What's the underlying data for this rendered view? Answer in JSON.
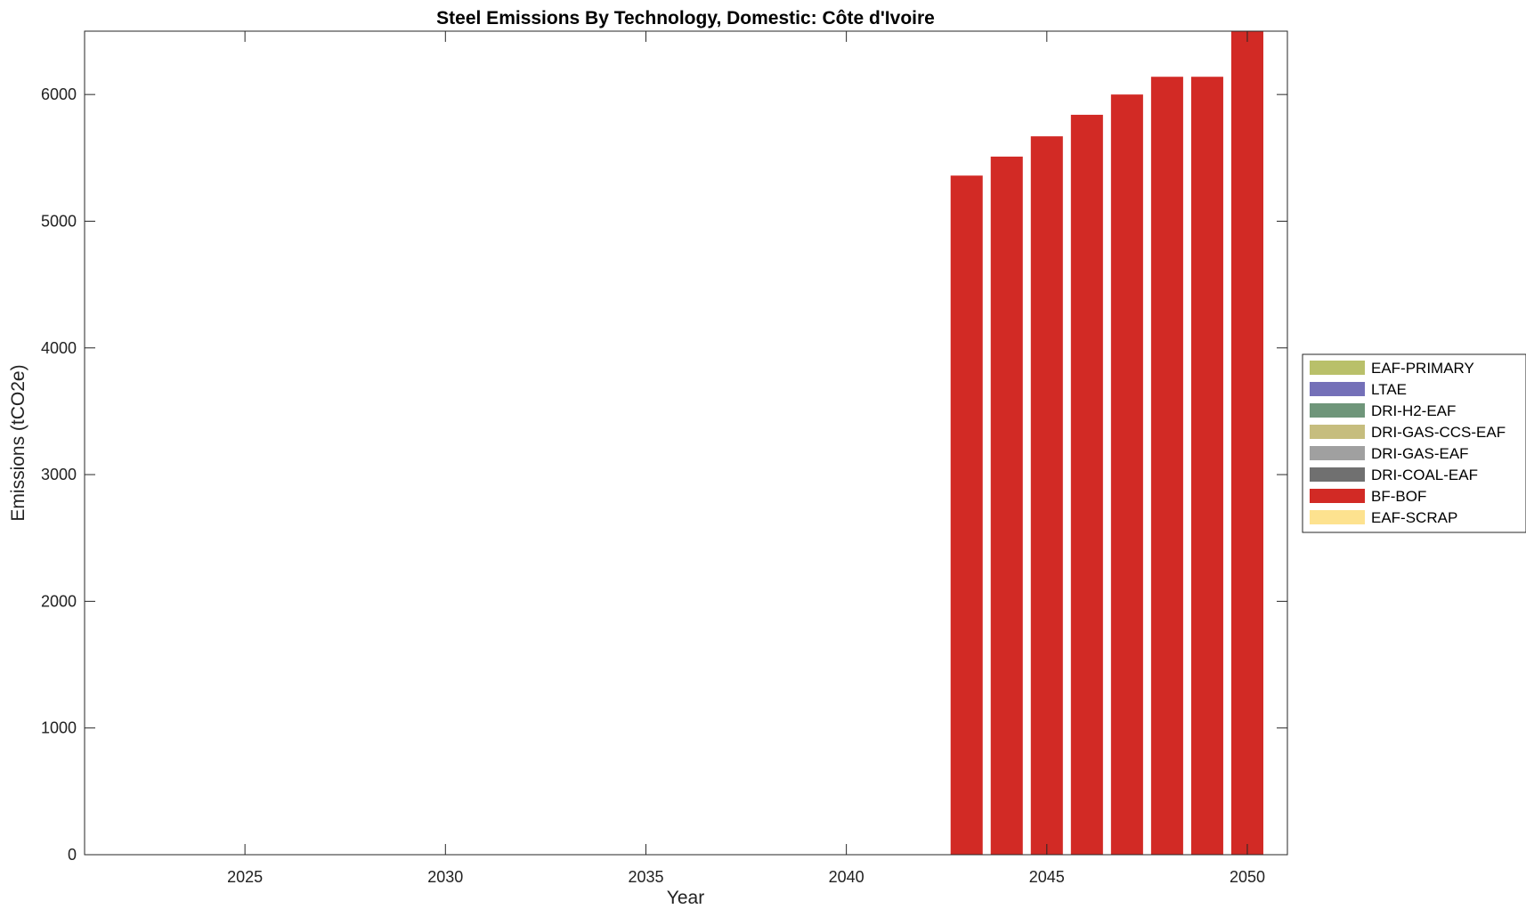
{
  "chart_data": {
    "type": "bar",
    "stacked": true,
    "title": "Steel Emissions By Technology, Domestic: Côte d'Ivoire",
    "xlabel": "Year",
    "ylabel": "Emissions (tCO2e)",
    "xlim": [
      2021,
      2051
    ],
    "ylim": [
      0,
      6500
    ],
    "xticks": [
      2025,
      2030,
      2035,
      2040,
      2045,
      2050
    ],
    "yticks": [
      0,
      1000,
      2000,
      3000,
      4000,
      5000,
      6000
    ],
    "grid": false,
    "legend_position": "outside-right",
    "x": [
      2022,
      2023,
      2024,
      2025,
      2026,
      2027,
      2028,
      2029,
      2030,
      2031,
      2032,
      2033,
      2034,
      2035,
      2036,
      2037,
      2038,
      2039,
      2040,
      2041,
      2042,
      2043,
      2044,
      2045,
      2046,
      2047,
      2048,
      2049,
      2050
    ],
    "series": [
      {
        "name": "EAF-PRIMARY",
        "color": "#b9c06a",
        "values": [
          0,
          0,
          0,
          0,
          0,
          0,
          0,
          0,
          0,
          0,
          0,
          0,
          0,
          0,
          0,
          0,
          0,
          0,
          0,
          0,
          0,
          0,
          0,
          0,
          0,
          0,
          0,
          0,
          0
        ]
      },
      {
        "name": "LTAE",
        "color": "#7470b8",
        "values": [
          0,
          0,
          0,
          0,
          0,
          0,
          0,
          0,
          0,
          0,
          0,
          0,
          0,
          0,
          0,
          0,
          0,
          0,
          0,
          0,
          0,
          0,
          0,
          0,
          0,
          0,
          0,
          0,
          0
        ]
      },
      {
        "name": "DRI-H2-EAF",
        "color": "#6f967a",
        "values": [
          0,
          0,
          0,
          0,
          0,
          0,
          0,
          0,
          0,
          0,
          0,
          0,
          0,
          0,
          0,
          0,
          0,
          0,
          0,
          0,
          0,
          0,
          0,
          0,
          0,
          0,
          0,
          0,
          0
        ]
      },
      {
        "name": "DRI-GAS-CCS-EAF",
        "color": "#c6bd7e",
        "values": [
          0,
          0,
          0,
          0,
          0,
          0,
          0,
          0,
          0,
          0,
          0,
          0,
          0,
          0,
          0,
          0,
          0,
          0,
          0,
          0,
          0,
          0,
          0,
          0,
          0,
          0,
          0,
          0,
          0
        ]
      },
      {
        "name": "DRI-GAS-EAF",
        "color": "#a0a0a0",
        "values": [
          0,
          0,
          0,
          0,
          0,
          0,
          0,
          0,
          0,
          0,
          0,
          0,
          0,
          0,
          0,
          0,
          0,
          0,
          0,
          0,
          0,
          0,
          0,
          0,
          0,
          0,
          0,
          0,
          0
        ]
      },
      {
        "name": "DRI-COAL-EAF",
        "color": "#707070",
        "values": [
          0,
          0,
          0,
          0,
          0,
          0,
          0,
          0,
          0,
          0,
          0,
          0,
          0,
          0,
          0,
          0,
          0,
          0,
          0,
          0,
          0,
          0,
          0,
          0,
          0,
          0,
          0,
          0,
          0
        ]
      },
      {
        "name": "BF-BOF",
        "color": "#d22a25",
        "values": [
          0,
          0,
          0,
          0,
          0,
          0,
          0,
          0,
          0,
          0,
          0,
          0,
          0,
          0,
          0,
          0,
          0,
          0,
          0,
          0,
          0,
          5360,
          5510,
          5670,
          5840,
          6000,
          6140,
          6140,
          6500
        ]
      },
      {
        "name": "EAF-SCRAP",
        "color": "#fde28f",
        "values": [
          0,
          0,
          0,
          0,
          0,
          0,
          0,
          0,
          0,
          0,
          0,
          0,
          0,
          0,
          0,
          0,
          0,
          0,
          0,
          0,
          0,
          0,
          0,
          0,
          0,
          0,
          0,
          0,
          0
        ]
      }
    ]
  }
}
